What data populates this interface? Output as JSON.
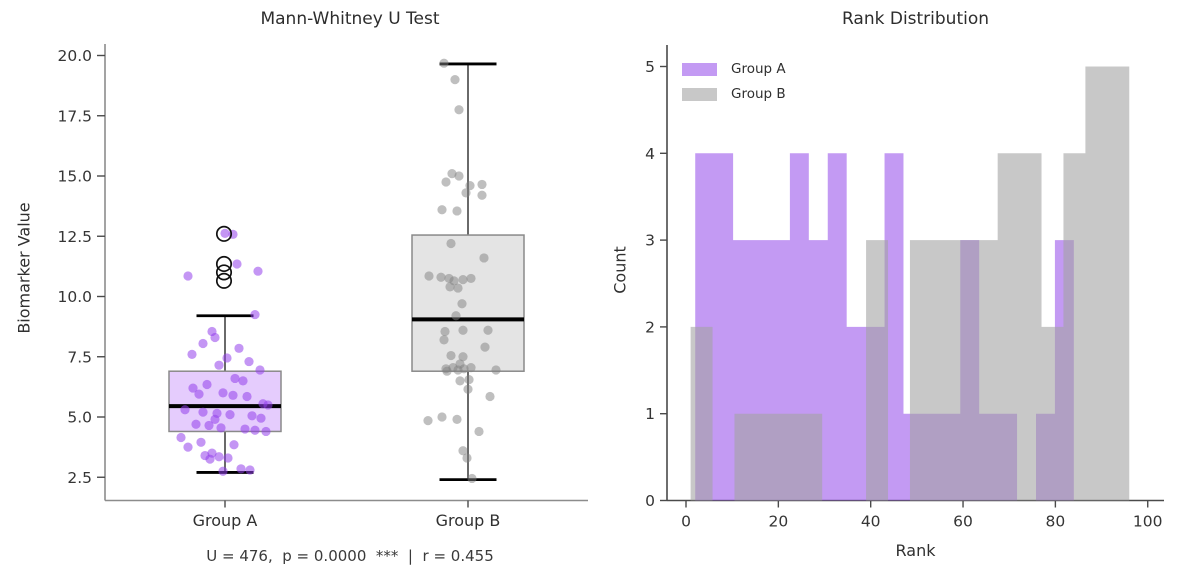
{
  "chart_data": [
    {
      "type": "boxplot_with_points",
      "title": "Mann-Whitney U Test",
      "ylabel": "Biomarker Value",
      "ylim": [
        1.5,
        20.6
      ],
      "yticks": [
        "2.5",
        "5.0",
        "7.5",
        "10.0",
        "12.5",
        "15.0",
        "17.5",
        "20.0"
      ],
      "ytick_values": [
        2.5,
        5.0,
        7.5,
        10.0,
        12.5,
        15.0,
        17.5,
        20.0
      ],
      "caption": "U = 476,  p = 0.0000  ***  |  r = 0.455",
      "stats": {
        "U": 476,
        "p": "0.0000",
        "significance": "***",
        "r": 0.455
      },
      "groups": [
        {
          "label": "Group A",
          "box_fill": "rgba(168,85,247,0.30)",
          "point_fill": "rgba(148,64,235,0.55)",
          "q1": 4.4,
          "median": 5.45,
          "q3": 6.9,
          "whisker_low": 2.7,
          "whisker_high": 9.2,
          "outliers": [
            12.6,
            11.35,
            11.0,
            10.65
          ],
          "points": [
            [
              0,
              12.62
            ],
            [
              8,
              12.58
            ],
            [
              12,
              11.35
            ],
            [
              33,
              11.05
            ],
            [
              -37,
              10.85
            ],
            [
              30,
              9.25
            ],
            [
              -13,
              8.55
            ],
            [
              -10,
              8.3
            ],
            [
              -22,
              8.05
            ],
            [
              14,
              7.85
            ],
            [
              -33,
              7.6
            ],
            [
              2,
              7.45
            ],
            [
              24,
              7.3
            ],
            [
              -6,
              7.15
            ],
            [
              35,
              6.95
            ],
            [
              10,
              6.6
            ],
            [
              18,
              6.5
            ],
            [
              -18,
              6.35
            ],
            [
              -32,
              6.2
            ],
            [
              -2,
              6.0
            ],
            [
              -26,
              5.95
            ],
            [
              8,
              5.9
            ],
            [
              22,
              5.85
            ],
            [
              38,
              5.55
            ],
            [
              43,
              5.5
            ],
            [
              -40,
              5.3
            ],
            [
              -22,
              5.2
            ],
            [
              -8,
              5.15
            ],
            [
              5,
              5.1
            ],
            [
              27,
              5.05
            ],
            [
              36,
              4.95
            ],
            [
              -10,
              4.9
            ],
            [
              -29,
              4.7
            ],
            [
              -16,
              4.65
            ],
            [
              -4,
              4.55
            ],
            [
              20,
              4.5
            ],
            [
              30,
              4.45
            ],
            [
              41,
              4.4
            ],
            [
              -44,
              4.15
            ],
            [
              -24,
              3.95
            ],
            [
              9,
              3.85
            ],
            [
              -37,
              3.75
            ],
            [
              -13,
              3.5
            ],
            [
              -20,
              3.4
            ],
            [
              -6,
              3.35
            ],
            [
              3,
              3.3
            ],
            [
              -15,
              3.25
            ],
            [
              16,
              2.85
            ],
            [
              25,
              2.8
            ],
            [
              -2,
              2.75
            ]
          ]
        },
        {
          "label": "Group B",
          "box_fill": "rgba(130,130,130,0.22)",
          "point_fill": "rgba(128,128,128,0.50)",
          "q1": 6.9,
          "median": 9.05,
          "q3": 12.55,
          "whisker_low": 2.4,
          "whisker_high": 19.65,
          "outliers": [],
          "points": [
            [
              -24,
              19.68
            ],
            [
              -13,
              19.0
            ],
            [
              -9,
              17.75
            ],
            [
              -16,
              15.1
            ],
            [
              -9,
              15.0
            ],
            [
              -22,
              14.75
            ],
            [
              14,
              14.65
            ],
            [
              2,
              14.6
            ],
            [
              -2,
              14.3
            ],
            [
              14,
              14.2
            ],
            [
              -26,
              13.6
            ],
            [
              -11,
              13.55
            ],
            [
              -17,
              12.2
            ],
            [
              16,
              11.6
            ],
            [
              -39,
              10.85
            ],
            [
              -27,
              10.8
            ],
            [
              -19,
              10.75
            ],
            [
              3,
              10.75
            ],
            [
              -5,
              10.7
            ],
            [
              -14,
              10.65
            ],
            [
              -18,
              10.4
            ],
            [
              -10,
              10.35
            ],
            [
              -6,
              9.7
            ],
            [
              -12,
              9.2
            ],
            [
              20,
              8.6
            ],
            [
              -5,
              8.6
            ],
            [
              -23,
              8.55
            ],
            [
              -24,
              8.2
            ],
            [
              17,
              7.9
            ],
            [
              -17,
              7.55
            ],
            [
              -5,
              7.5
            ],
            [
              -8,
              7.2
            ],
            [
              3,
              7.05
            ],
            [
              -15,
              7.05
            ],
            [
              -22,
              7.0
            ],
            [
              -4,
              7.0
            ],
            [
              -10,
              6.95
            ],
            [
              28,
              6.95
            ],
            [
              -21,
              6.9
            ],
            [
              -8,
              6.5
            ],
            [
              1,
              6.55
            ],
            [
              0,
              6.15
            ],
            [
              22,
              5.85
            ],
            [
              -26,
              5.0
            ],
            [
              -11,
              4.9
            ],
            [
              -40,
              4.85
            ],
            [
              11,
              4.4
            ],
            [
              -5,
              3.6
            ],
            [
              -1,
              3.3
            ],
            [
              4,
              2.45
            ]
          ]
        }
      ]
    },
    {
      "type": "histogram",
      "title": "Rank Distribution",
      "xlabel": "Rank",
      "ylabel": "Count",
      "xticks": [
        0,
        20,
        40,
        60,
        80,
        100
      ],
      "yticks": [
        0,
        1,
        2,
        3,
        4,
        5
      ],
      "xlim": [
        -4.1,
        103.3
      ],
      "ylim": [
        0,
        5.25
      ],
      "legend_position": "upper left",
      "series": [
        {
          "name": "Group A",
          "fill": "rgba(155,87,235,0.60)",
          "bin_start": 2,
          "bin_width": 4.1,
          "counts": [
            4,
            4,
            3,
            3,
            3,
            4,
            3,
            4,
            2,
            2,
            4,
            1,
            1,
            1,
            3,
            1,
            1,
            0,
            1,
            3
          ]
        },
        {
          "name": "Group B",
          "fill": "rgba(163,163,163,0.60)",
          "bin_start": 1,
          "bin_width": 4.75,
          "counts": [
            2,
            0,
            1,
            1,
            1,
            1,
            0,
            0,
            3,
            0,
            3,
            3,
            3,
            3,
            4,
            4,
            2,
            4,
            5,
            5
          ]
        }
      ]
    }
  ]
}
